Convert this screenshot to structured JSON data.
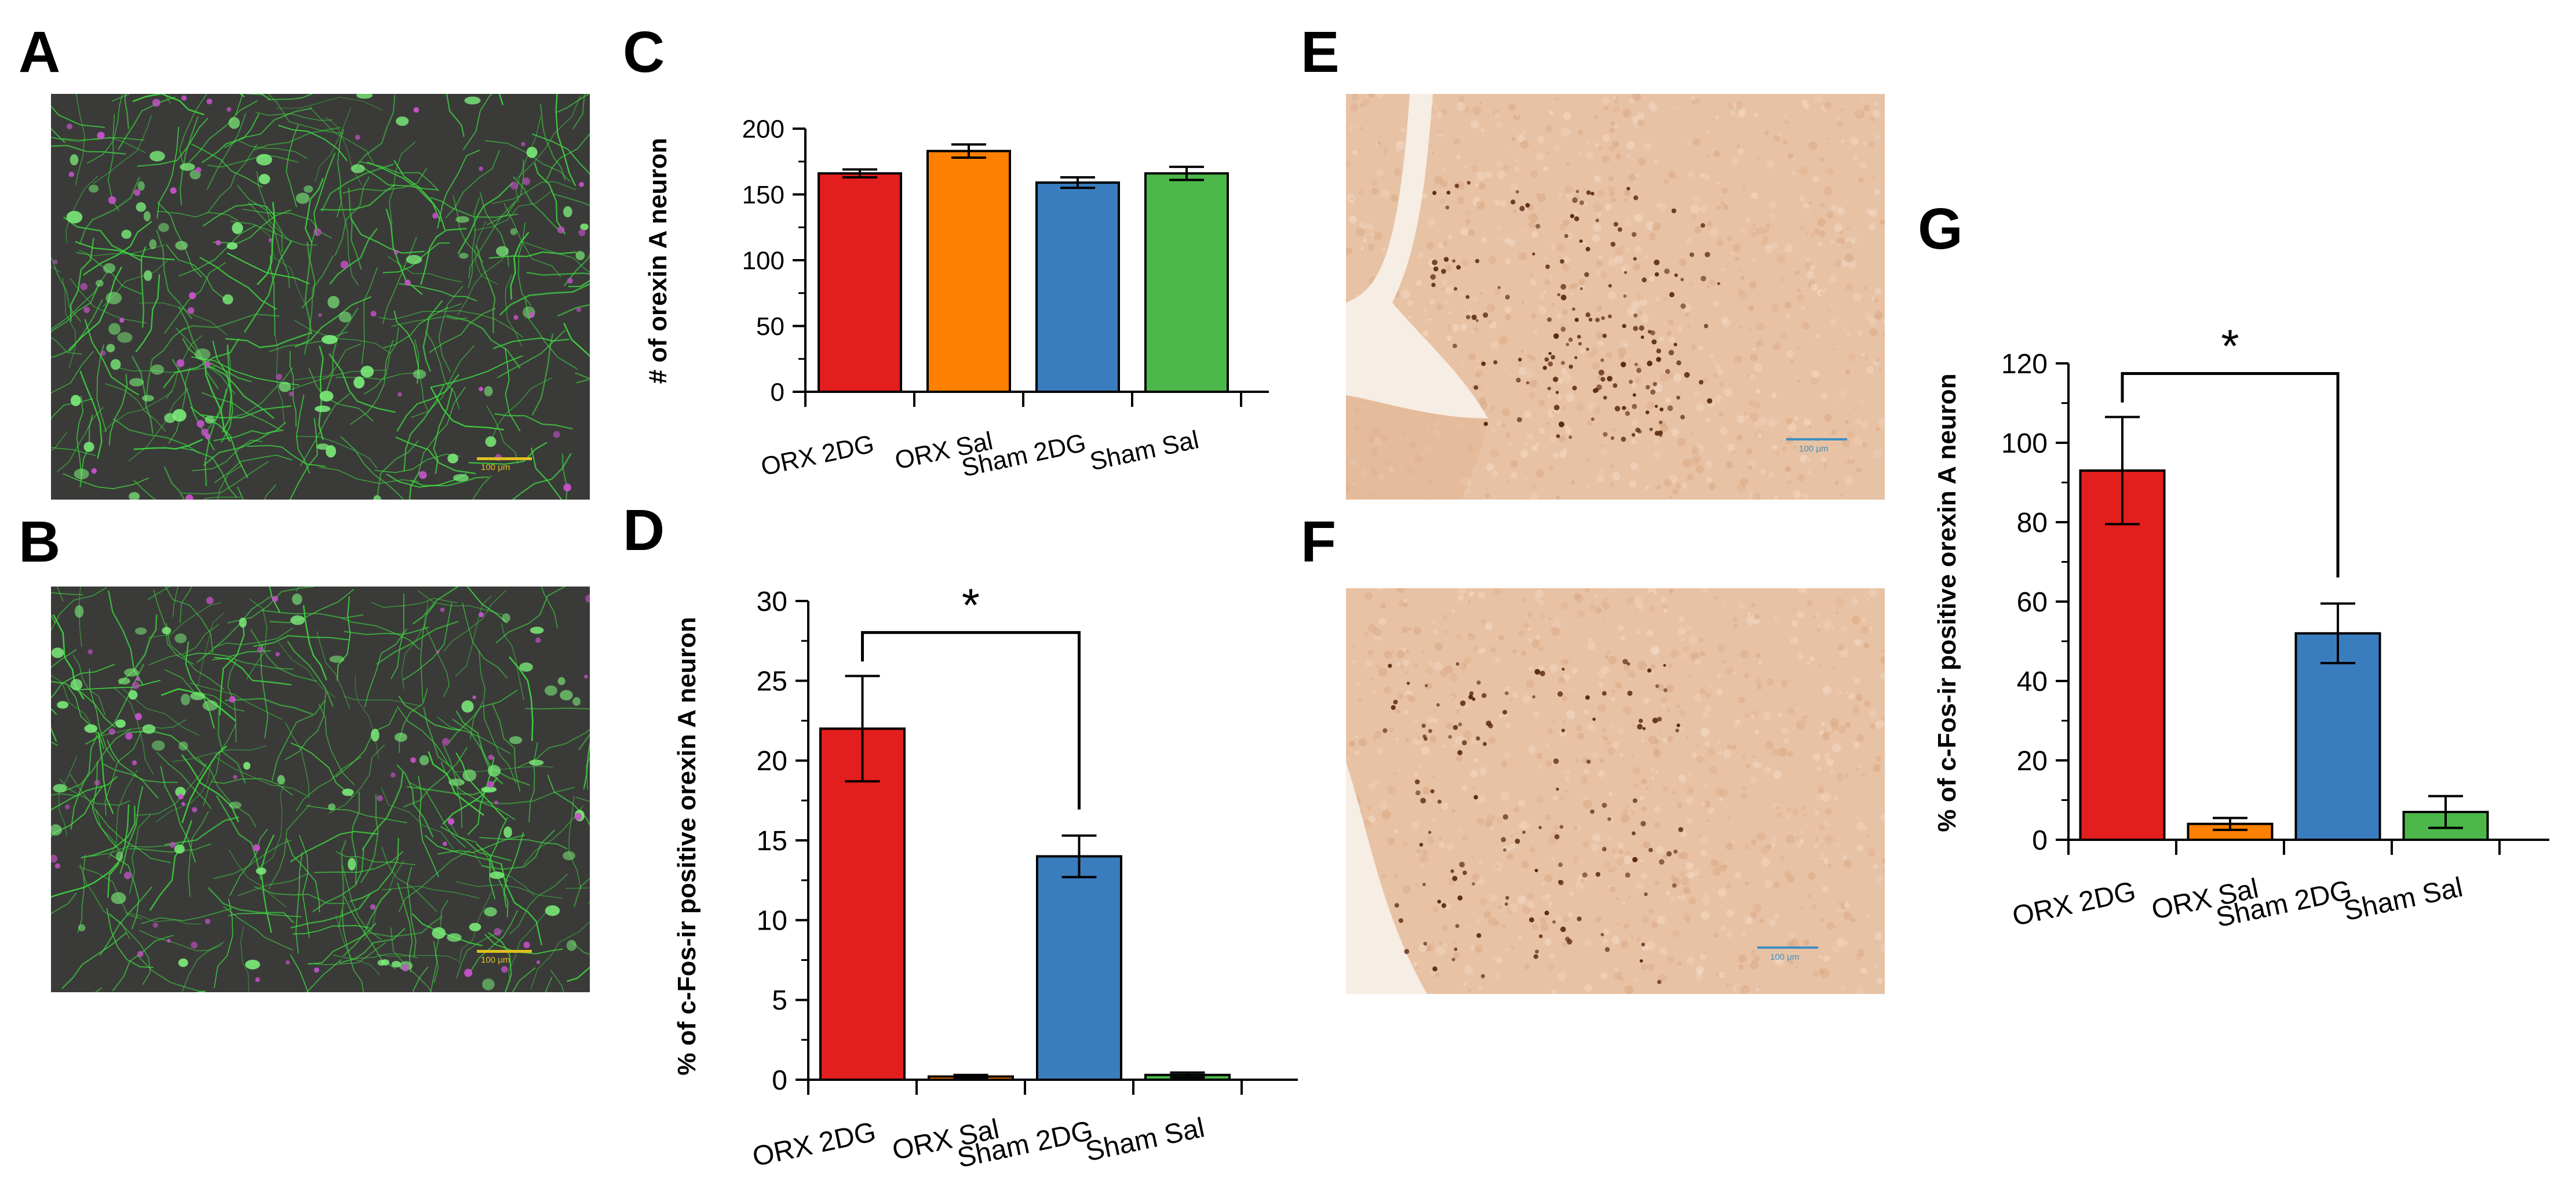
{
  "panels": {
    "a": {
      "letter": "A",
      "scale_bar": "100 μm"
    },
    "b": {
      "letter": "B",
      "scale_bar": "100 μm"
    },
    "c": {
      "letter": "C"
    },
    "d": {
      "letter": "D"
    },
    "e": {
      "letter": "E",
      "scale_bar": "100 μm"
    },
    "f": {
      "letter": "F",
      "scale_bar": "100 μm"
    },
    "g": {
      "letter": "G"
    }
  },
  "colors": {
    "ORX 2DG": "#e31e1e",
    "ORX Sal": "#ff8000",
    "Sham 2DG": "#3a7dbf",
    "Sham Sal": "#4cb84a",
    "fluor_green": "#3fd640",
    "fluor_magenta": "#c552c8",
    "fluor_bg": "#3a3b39",
    "ihc_bg": "#e8c2a4",
    "ihc_nucleus": "#5a2a14",
    "scale_yellow": "#e0c020",
    "scale_blue": "#3f8fc0"
  },
  "chart_data": [
    {
      "id": "C",
      "type": "bar",
      "categories": [
        "ORX 2DG",
        "ORX Sal",
        "Sham 2DG",
        "Sham Sal"
      ],
      "values": [
        166,
        183,
        159,
        166
      ],
      "errors": [
        3,
        5,
        4,
        5
      ],
      "ylabel": "# of orexin A neuron",
      "ylim": [
        0,
        200
      ],
      "yticks": [
        0,
        50,
        100,
        150,
        200
      ],
      "significance": []
    },
    {
      "id": "D",
      "type": "bar",
      "categories": [
        "ORX 2DG",
        "ORX Sal",
        "Sham 2DG",
        "Sham Sal"
      ],
      "values": [
        22.0,
        0.2,
        14.0,
        0.3
      ],
      "errors": [
        3.3,
        0.1,
        1.3,
        0.15
      ],
      "ylabel": "% of c-Fos-ir positive orexin A neuron",
      "ylim": [
        0,
        30
      ],
      "yticks": [
        0,
        5,
        10,
        15,
        20,
        25,
        30
      ],
      "significance": [
        {
          "between": [
            "ORX 2DG",
            "Sham 2DG"
          ],
          "symbol": "*"
        }
      ]
    },
    {
      "id": "G",
      "type": "bar",
      "categories": [
        "ORX 2DG",
        "ORX Sal",
        "Sham 2DG",
        "Sham Sal"
      ],
      "values": [
        93,
        4,
        52,
        7
      ],
      "errors": [
        13.5,
        1.5,
        7.5,
        4
      ],
      "ylabel": "% of c-Fos-ir positive orexin A neuron",
      "ylim": [
        0,
        120
      ],
      "yticks": [
        0,
        20,
        40,
        60,
        80,
        100,
        120
      ],
      "significance": [
        {
          "between": [
            "ORX 2DG",
            "Sham 2DG"
          ],
          "symbol": "*"
        }
      ]
    }
  ]
}
